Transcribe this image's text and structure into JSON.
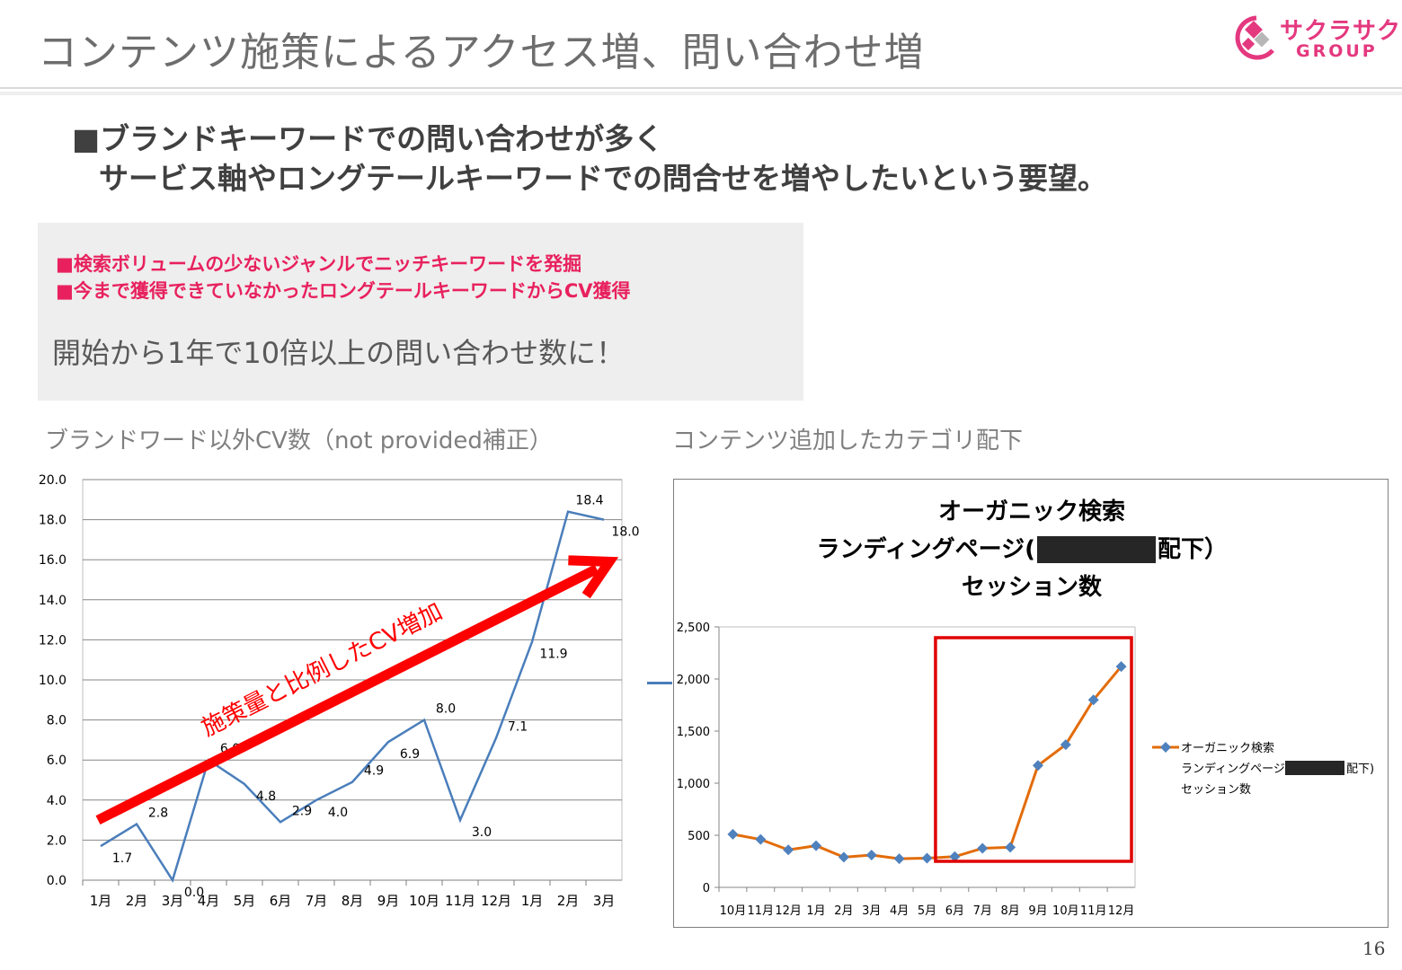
{
  "slide": {
    "title": "コンテンツ施策によるアクセス増、問い合わせ増",
    "page_number": "16"
  },
  "logo": {
    "name": "サクラサク",
    "sub": "GROUP",
    "color": "#e4387f"
  },
  "headline": {
    "line1": "■ブランドキーワードでの問い合わせが多く",
    "line2": "サービス軸やロングテールキーワードでの問合せを増やしたいという要望。"
  },
  "callout": {
    "bullet1": "■検索ボリュームの少ないジャンルでニッチキーワードを発掘",
    "bullet2": "■今まで獲得できていなかったロングテールキーワードからCV獲得",
    "main": "開始から1年で10倍以上の問い合わせ数に！",
    "bullet_color": "#e8215e"
  },
  "left_caption": "ブランドワード以外CV数（not provided補正）",
  "right_caption": "コンテンツ追加したカテゴリ配下",
  "chart_data": [
    {
      "type": "line",
      "categories": [
        "1月",
        "2月",
        "3月",
        "4月",
        "5月",
        "6月",
        "7月",
        "8月",
        "9月",
        "10月",
        "11月",
        "12月",
        "1月",
        "2月",
        "3月"
      ],
      "values": [
        1.7,
        2.8,
        0.0,
        6.0,
        4.8,
        2.9,
        4.0,
        4.9,
        6.9,
        8.0,
        3.0,
        7.1,
        11.9,
        18.4,
        18.0
      ],
      "data_labels": [
        "1.7",
        "2.8",
        "0.0",
        "6.0",
        "4.8",
        "2.9",
        "4.0",
        "4.9",
        "6.9",
        "8.0",
        "3.0",
        "7.1",
        "11.9",
        "18.4",
        "18.0"
      ],
      "y_ticks": [
        "0.0",
        "2.0",
        "4.0",
        "6.0",
        "8.0",
        "10.0",
        "12.0",
        "14.0",
        "16.0",
        "18.0",
        "20.0"
      ],
      "ylim": [
        0,
        20
      ],
      "grid": true,
      "line_color": "#4a7ebb",
      "annotation": {
        "text": "施策量と比例したCV増加",
        "color": "#ff0000"
      }
    },
    {
      "type": "line",
      "title_lines": [
        "オーガニック検索",
        "ランディングページ(",
        "配下）",
        "セッション数"
      ],
      "categories": [
        "10月",
        "11月",
        "12月",
        "1月",
        "2月",
        "3月",
        "4月",
        "5月",
        "6月",
        "7月",
        "8月",
        "9月",
        "10月",
        "11月",
        "12月"
      ],
      "values": [
        510,
        460,
        360,
        400,
        290,
        310,
        275,
        280,
        295,
        375,
        385,
        1170,
        1370,
        1800,
        2120
      ],
      "y_ticks": [
        "0",
        "500",
        "1,000",
        "1,500",
        "2,000",
        "2,500"
      ],
      "ylim": [
        0,
        2500
      ],
      "grid": false,
      "line_color": "#e36c09",
      "marker_color": "#4f81bd",
      "legend": {
        "position": "right",
        "line1": "オーガニック検索",
        "line2": "ランディングページ(",
        "line2_end": "配下)",
        "line3": "セッション数"
      },
      "highlight": {
        "from_category_index": 8,
        "to_category_index": 14,
        "color": "#e00000"
      }
    }
  ]
}
